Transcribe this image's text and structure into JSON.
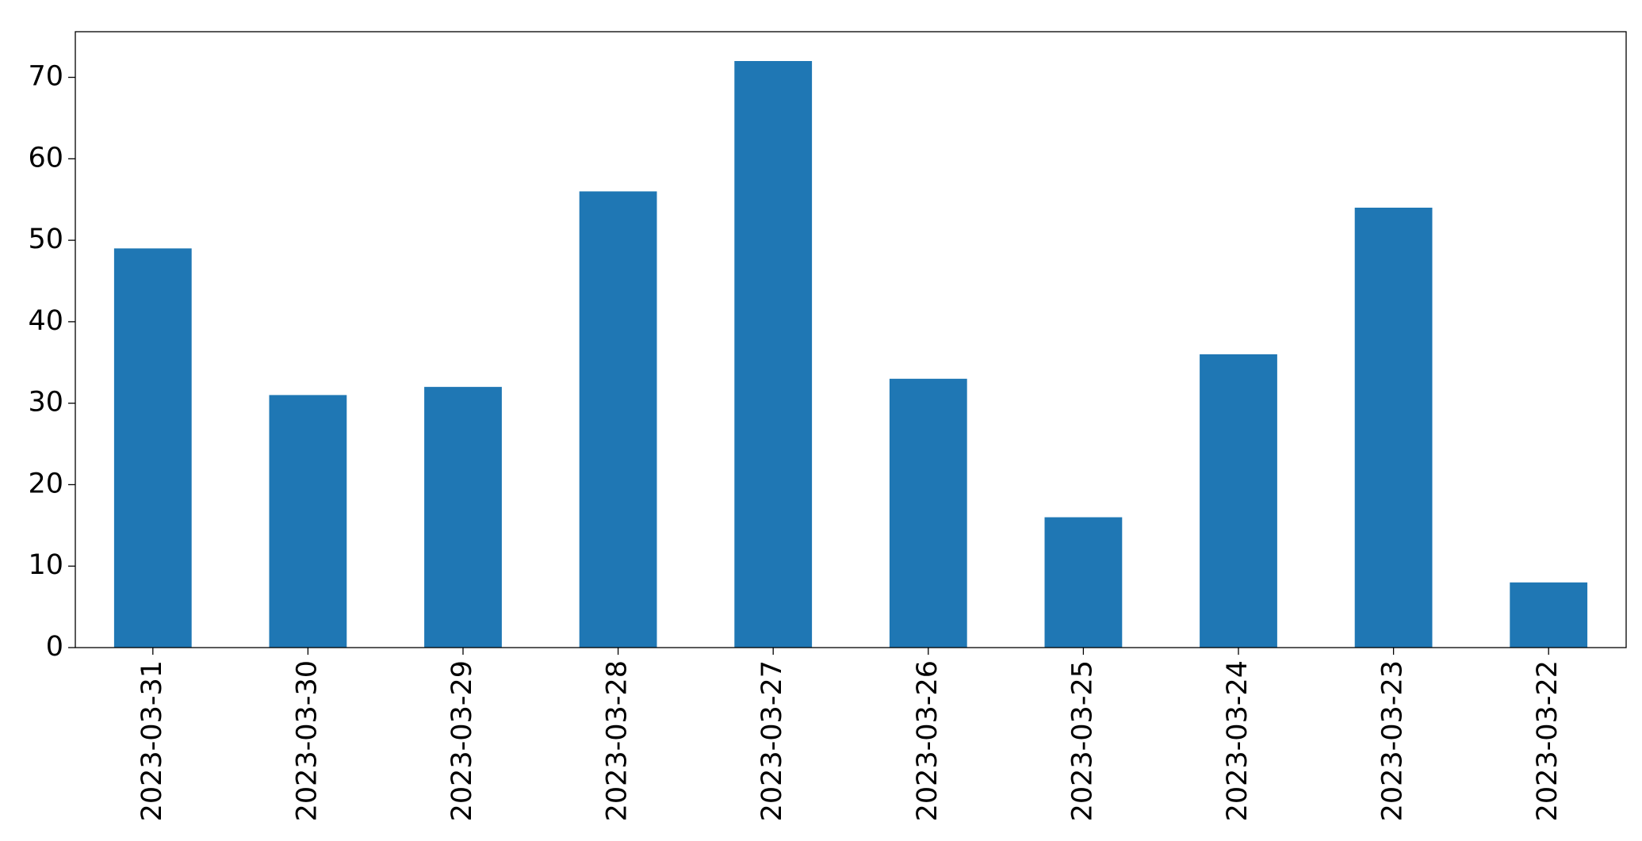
{
  "chart_data": {
    "type": "bar",
    "categories": [
      "2023-03-31",
      "2023-03-30",
      "2023-03-29",
      "2023-03-28",
      "2023-03-27",
      "2023-03-26",
      "2023-03-25",
      "2023-03-24",
      "2023-03-23",
      "2023-03-22"
    ],
    "values": [
      49,
      31,
      32,
      56,
      72,
      33,
      16,
      36,
      54,
      8
    ],
    "color": "#1f77b4",
    "ylim": [
      0,
      75.6
    ],
    "yticks": [
      0,
      10,
      20,
      30,
      40,
      50,
      60,
      70
    ],
    "grid": false
  }
}
